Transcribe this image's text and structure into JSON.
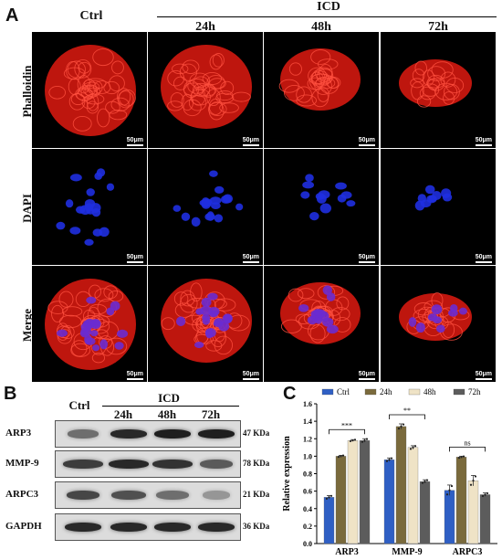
{
  "panels": {
    "A": "A",
    "B": "B",
    "C": "C"
  },
  "panelA": {
    "col_ctrl": "Ctrl",
    "group": "ICD",
    "cols": [
      "24h",
      "48h",
      "72h"
    ],
    "rows": [
      "Phalloidin",
      "DAPI",
      "Merge"
    ],
    "scale": "50μm"
  },
  "panelB": {
    "col_ctrl": "Ctrl",
    "group": "ICD",
    "cols": [
      "24h",
      "48h",
      "72h"
    ],
    "blots": [
      {
        "name": "ARP3",
        "kda": "47 KDa"
      },
      {
        "name": "MMP-9",
        "kda": "78 KDa"
      },
      {
        "name": "ARPC3",
        "kda": "21 KDa"
      },
      {
        "name": "GAPDH",
        "kda": "36 KDa"
      }
    ]
  },
  "colors": {
    "ctrl": "#2f5fc4",
    "h24": "#7a6a3c",
    "h48": "#efe3c6",
    "h72": "#5c5c5c"
  },
  "chart_data": {
    "type": "bar",
    "categories": [
      "ARP3",
      "MMP-9",
      "ARPC3"
    ],
    "series": [
      {
        "name": "Ctrl",
        "values": [
          0.53,
          0.96,
          0.61
        ],
        "errors": [
          0.02,
          0.02,
          0.06
        ]
      },
      {
        "name": "24h",
        "values": [
          1.0,
          1.34,
          0.99
        ],
        "errors": [
          0.01,
          0.03,
          0.01
        ]
      },
      {
        "name": "48h",
        "values": [
          1.18,
          1.1,
          0.72
        ],
        "errors": [
          0.01,
          0.02,
          0.06
        ]
      },
      {
        "name": "72h",
        "values": [
          1.18,
          0.71,
          0.56
        ],
        "errors": [
          0.02,
          0.02,
          0.02
        ]
      }
    ],
    "significance": [
      "***",
      "**",
      "ns"
    ],
    "xlabel": "",
    "ylabel": "Relative expression",
    "ylim": [
      0.0,
      1.6
    ],
    "yticks": [
      "0.0",
      "0.2",
      "0.4",
      "0.6",
      "0.8",
      "1.0",
      "1.2",
      "1.4",
      "1.6"
    ],
    "legend": "top"
  }
}
